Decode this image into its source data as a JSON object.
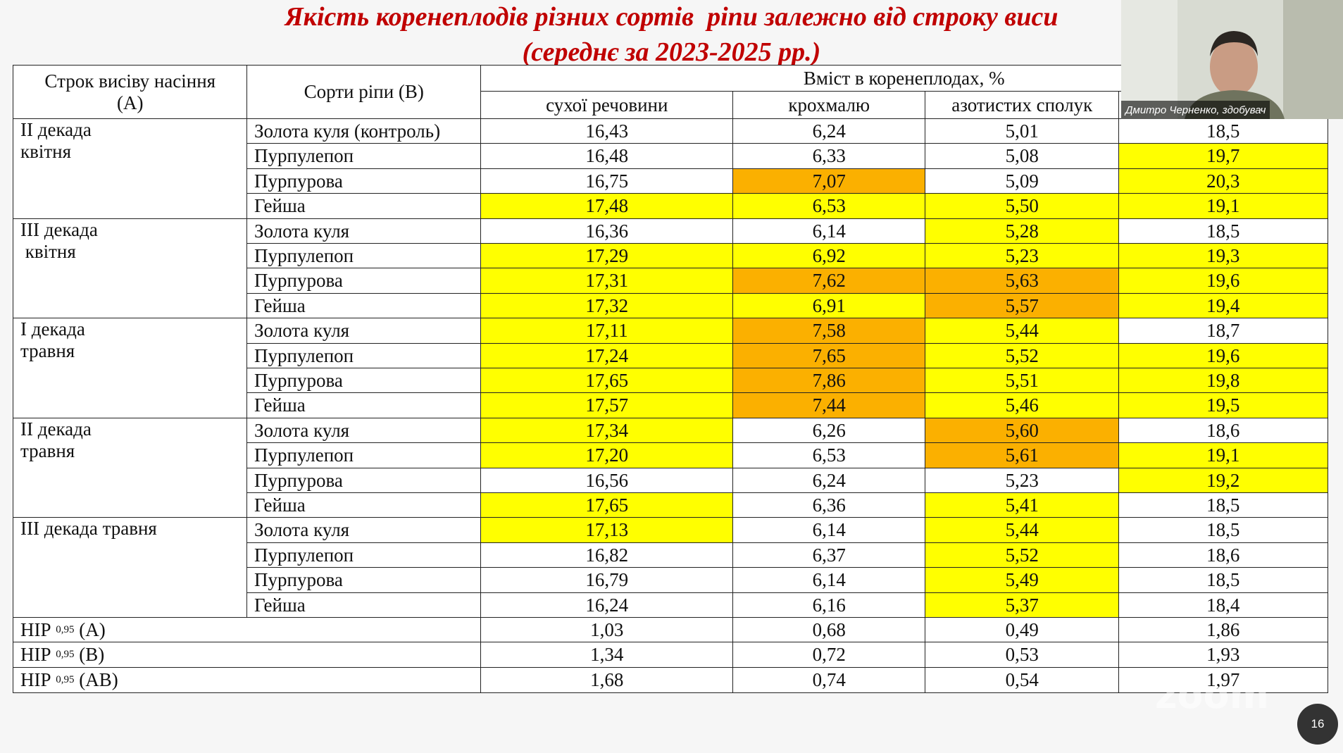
{
  "slide": {
    "title": [
      "Якість коренеплодів різних сортів  ріпи залежно від строку виси",
      "(середнє за 2023-2025 рр.)"
    ],
    "table": {
      "header": {
        "col_a": [
          "Строк висіву насіння",
          "(А)"
        ],
        "col_b": "Сорти ріпи (В)",
        "content": "Вміст в коренеплодах, %",
        "subheaders": [
          "сухої речовини",
          "крохмалю",
          "азотистих сполук"
        ]
      },
      "groups": [
        {
          "lines": [
            "ІІ декада",
            "квітня"
          ],
          "rows": [
            {
              "variety": "Золота куля (контроль)",
              "values": [
                "16,43",
                "6,24",
                "5,01",
                "18,5"
              ],
              "fills": [
                "#ffffff",
                "#ffffff",
                "#ffffff",
                "#ffffff"
              ]
            },
            {
              "variety": "Пурпулепоп",
              "values": [
                "16,48",
                "6,33",
                "5,08",
                "19,7"
              ],
              "fills": [
                "#ffffff",
                "#ffffff",
                "#ffffff",
                "#ffff00"
              ]
            },
            {
              "variety": "Пурпурова",
              "values": [
                "16,75",
                "7,07",
                "5,09",
                "20,3"
              ],
              "fills": [
                "#ffffff",
                "#fbb000",
                "#ffffff",
                "#ffff00"
              ]
            },
            {
              "variety": "Гейша",
              "values": [
                "17,48",
                "6,53",
                "5,50",
                "19,1"
              ],
              "fills": [
                "#ffff00",
                "#ffff00",
                "#ffff00",
                "#ffff00"
              ]
            }
          ]
        },
        {
          "lines": [
            "ІІІ декада",
            " квітня"
          ],
          "rows": [
            {
              "variety": "Золота куля",
              "values": [
                "16,36",
                "6,14",
                "5,28",
                "18,5"
              ],
              "fills": [
                "#ffffff",
                "#ffffff",
                "#ffff00",
                "#ffffff"
              ]
            },
            {
              "variety": "Пурпулепоп",
              "values": [
                "17,29",
                "6,92",
                "5,23",
                "19,3"
              ],
              "fills": [
                "#ffff00",
                "#ffff00",
                "#ffff00",
                "#ffff00"
              ]
            },
            {
              "variety": "Пурпурова",
              "values": [
                "17,31",
                "7,62",
                "5,63",
                "19,6"
              ],
              "fills": [
                "#ffff00",
                "#fbb000",
                "#fbb000",
                "#ffff00"
              ]
            },
            {
              "variety": "Гейша",
              "values": [
                "17,32",
                "6,91",
                "5,57",
                "19,4"
              ],
              "fills": [
                "#ffff00",
                "#ffff00",
                "#fbb000",
                "#ffff00"
              ]
            }
          ]
        },
        {
          "lines": [
            "І декада",
            "травня"
          ],
          "rows": [
            {
              "variety": "Золота куля",
              "values": [
                "17,11",
                "7,58",
                "5,44",
                "18,7"
              ],
              "fills": [
                "#ffff00",
                "#fbb000",
                "#ffff00",
                "#ffffff"
              ]
            },
            {
              "variety": "Пурпулепоп",
              "values": [
                "17,24",
                "7,65",
                "5,52",
                "19,6"
              ],
              "fills": [
                "#ffff00",
                "#fbb000",
                "#ffff00",
                "#ffff00"
              ]
            },
            {
              "variety": "Пурпурова",
              "values": [
                "17,65",
                "7,86",
                "5,51",
                "19,8"
              ],
              "fills": [
                "#ffff00",
                "#fbb000",
                "#ffff00",
                "#ffff00"
              ]
            },
            {
              "variety": "Гейша",
              "values": [
                "17,57",
                "7,44",
                "5,46",
                "19,5"
              ],
              "fills": [
                "#ffff00",
                "#fbb000",
                "#ffff00",
                "#ffff00"
              ]
            }
          ]
        },
        {
          "lines": [
            "ІІ декада",
            "травня"
          ],
          "rows": [
            {
              "variety": "Золота куля",
              "values": [
                "17,34",
                "6,26",
                "5,60",
                "18,6"
              ],
              "fills": [
                "#ffff00",
                "#ffffff",
                "#fbb000",
                "#ffffff"
              ]
            },
            {
              "variety": "Пурпулепоп",
              "values": [
                "17,20",
                "6,53",
                "5,61",
                "19,1"
              ],
              "fills": [
                "#ffff00",
                "#ffffff",
                "#fbb000",
                "#ffff00"
              ]
            },
            {
              "variety": "Пурпурова",
              "values": [
                "16,56",
                "6,24",
                "5,23",
                "19,2"
              ],
              "fills": [
                "#ffffff",
                "#ffffff",
                "#ffffff",
                "#ffff00"
              ]
            },
            {
              "variety": "Гейша",
              "values": [
                "17,65",
                "6,36",
                "5,41",
                "18,5"
              ],
              "fills": [
                "#ffff00",
                "#ffffff",
                "#ffff00",
                "#ffffff"
              ]
            }
          ]
        },
        {
          "lines": [
            "ІІІ декада травня"
          ],
          "rows": [
            {
              "variety": "Золота куля",
              "values": [
                "17,13",
                "6,14",
                "5,44",
                "18,5"
              ],
              "fills": [
                "#ffff00",
                "#ffffff",
                "#ffff00",
                "#ffffff"
              ]
            },
            {
              "variety": "Пурпулепоп",
              "values": [
                "16,82",
                "6,37",
                "5,52",
                "18,6"
              ],
              "fills": [
                "#ffffff",
                "#ffffff",
                "#ffff00",
                "#ffffff"
              ]
            },
            {
              "variety": "Пурпурова",
              "values": [
                "16,79",
                "6,14",
                "5,49",
                "18,5"
              ],
              "fills": [
                "#ffffff",
                "#ffffff",
                "#ffff00",
                "#ffffff"
              ]
            },
            {
              "variety": "Гейша",
              "values": [
                "16,24",
                "6,16",
                "5,37",
                "18,4"
              ],
              "fills": [
                "#ffffff",
                "#ffffff",
                "#ffff00",
                "#ffffff"
              ]
            }
          ]
        }
      ],
      "nir": [
        {
          "label": "НІР",
          "sub": "0,95",
          "suffix": "(А)",
          "values": [
            "1,03",
            "0,68",
            "0,49",
            "1,86"
          ]
        },
        {
          "label": "НІР",
          "sub": "0,95",
          "suffix": "(В)",
          "values": [
            "1,34",
            "0,72",
            "0,53",
            "1,93"
          ]
        },
        {
          "label": "НІР",
          "sub": "0,95",
          "suffix": "(АВ)",
          "values": [
            "1,68",
            "0,74",
            "0,54",
            "1,97"
          ]
        }
      ]
    },
    "video": {
      "name": "Дмитро Черненко, здобувач"
    },
    "watermark": "zoom",
    "page_number": "16"
  }
}
